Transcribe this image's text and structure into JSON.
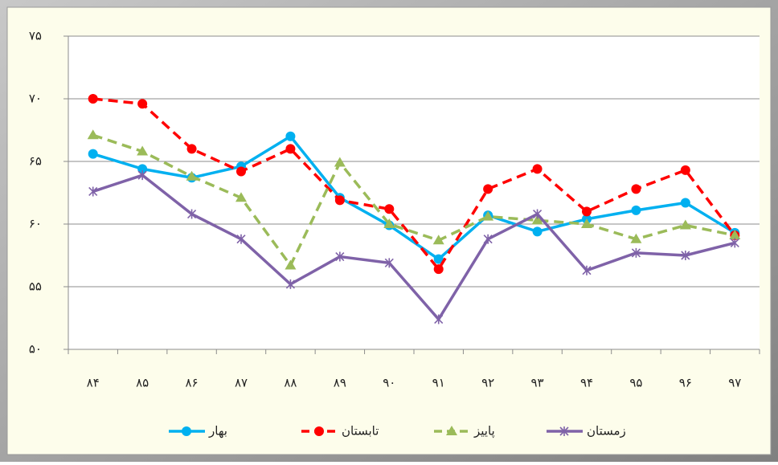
{
  "chart_data": {
    "type": "line",
    "categories": [
      "۸۴",
      "۸۵",
      "۸۶",
      "۸۷",
      "۸۸",
      "۸۹",
      "۹۰",
      "۹۱",
      "۹۲",
      "۹۳",
      "۹۴",
      "۹۵",
      "۹۶",
      "۹۷"
    ],
    "series": [
      {
        "name": "بهار",
        "color": "#00b0f0",
        "marker": "circle",
        "dashed": false,
        "values": [
          65.6,
          64.4,
          63.7,
          64.6,
          67,
          62.1,
          59.9,
          57.2,
          60.7,
          59.4,
          60.4,
          61.1,
          61.7,
          59.3
        ]
      },
      {
        "name": "تابستان",
        "color": "#ff0000",
        "marker": "circle",
        "dashed": true,
        "values": [
          70,
          69.6,
          66,
          64.2,
          66,
          61.9,
          61.2,
          56.4,
          62.8,
          64.4,
          61,
          62.8,
          64.3,
          59.1
        ]
      },
      {
        "name": "پاییز",
        "color": "#9bbb59",
        "marker": "triangle",
        "dashed": true,
        "values": [
          67.1,
          65.8,
          63.8,
          62.1,
          56.7,
          64.9,
          60,
          58.7,
          60.6,
          60.3,
          60,
          58.8,
          59.9,
          59.1
        ]
      },
      {
        "name": "زمستان",
        "color": "#7f62a8",
        "marker": "star",
        "dashed": false,
        "values": [
          62.6,
          63.9,
          60.8,
          58.8,
          55.2,
          57.4,
          56.9,
          52.4,
          58.8,
          60.8,
          56.3,
          57.7,
          57.5,
          58.5
        ]
      }
    ],
    "ylim": [
      50,
      75
    ],
    "yticks": [
      {
        "value": 50,
        "label": "۵۰"
      },
      {
        "value": 55,
        "label": "۵۵"
      },
      {
        "value": 60,
        "label": "۶۰"
      },
      {
        "value": 65,
        "label": "۶۵"
      },
      {
        "value": 70,
        "label": "۷۰"
      },
      {
        "value": 75,
        "label": "۷۵"
      }
    ],
    "grid": true,
    "legend": "bottom"
  }
}
